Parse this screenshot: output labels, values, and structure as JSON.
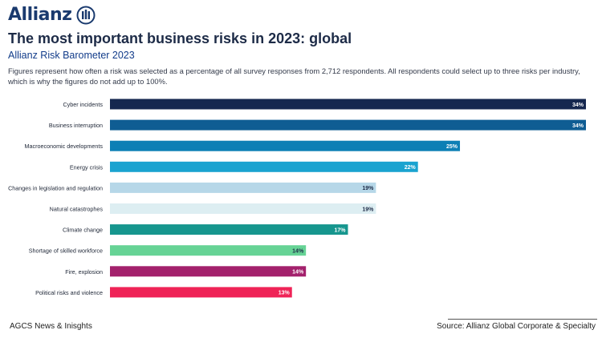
{
  "brand": {
    "name": "Allianz",
    "logo_icon": "allianz-eagle-icon",
    "color": "#1a3a6e"
  },
  "header": {
    "title": "The most important business risks in 2023: global",
    "subtitle": "Allianz Risk Barometer 2023",
    "note": "Figures represent how often a risk was selected as a percentage of all survey responses from 2,712 respondents. All respondents could select up to three risks per industry, which is why the figures do not add up to 100%."
  },
  "footer": {
    "left": "AGCS News & Inisghts",
    "right": "Source: Allianz Global Corporate & Specialty"
  },
  "chart_data": {
    "type": "bar",
    "orientation": "horizontal",
    "categories": [
      "Cyber incidents",
      "Business interruption",
      "Macroeconomic developments",
      "Energy crisis",
      "Changes in legislation and regulation",
      "Natural catastrophes",
      "Climate change",
      "Shortage of skilled workforce",
      "Fire, explosion",
      "Political risks and violence"
    ],
    "values": [
      34,
      34,
      25,
      22,
      19,
      19,
      17,
      14,
      14,
      13
    ],
    "labels": [
      "34%",
      "34%",
      "25%",
      "22%",
      "19%",
      "19%",
      "17%",
      "14%",
      "14%",
      "13%"
    ],
    "colors": [
      "#15274f",
      "#0f5d93",
      "#0d7fb5",
      "#1aa3d0",
      "#b6d7e8",
      "#ddeef2",
      "#16968e",
      "#66d395",
      "#a3216c",
      "#ef2357"
    ],
    "label_colors": [
      "#ffffff",
      "#ffffff",
      "#ffffff",
      "#ffffff",
      "#1d2b47",
      "#1d2b47",
      "#ffffff",
      "#1d2b47",
      "#ffffff",
      "#ffffff"
    ],
    "xlim": [
      0,
      34
    ],
    "grid": false,
    "legend": "none"
  }
}
